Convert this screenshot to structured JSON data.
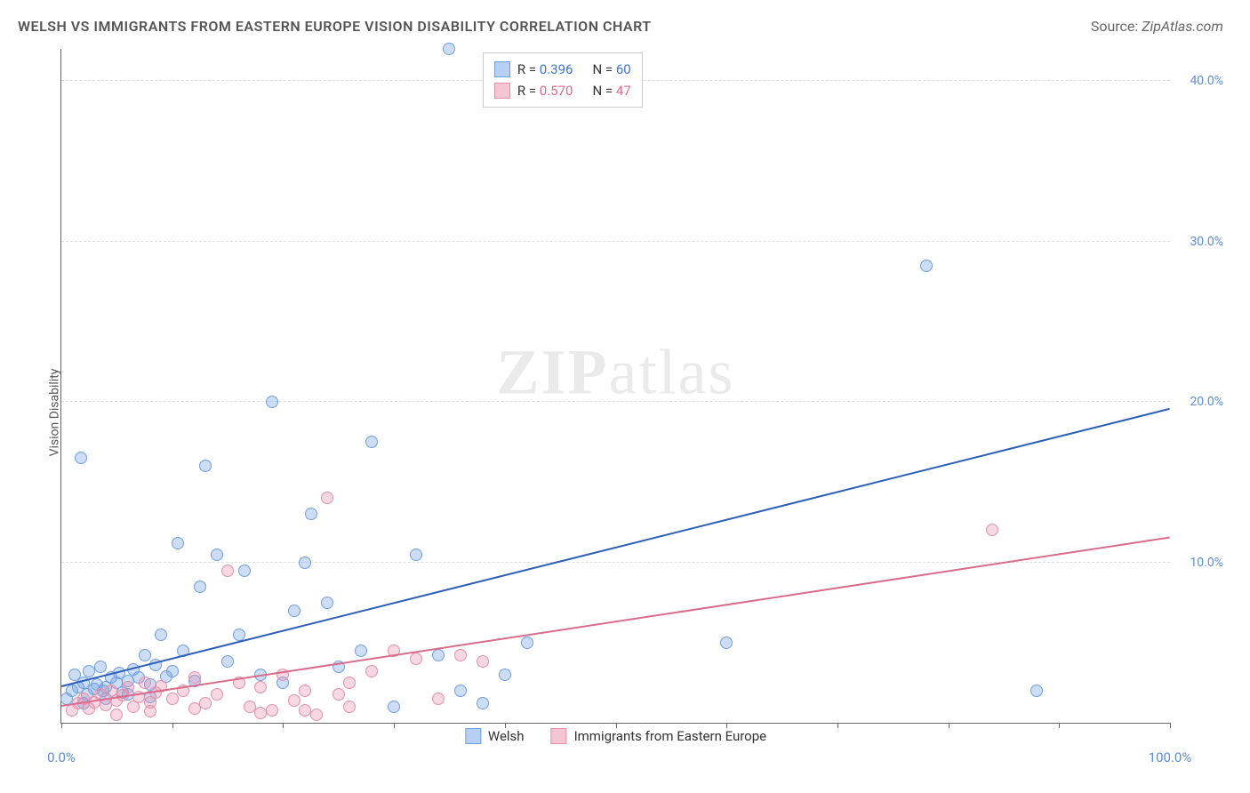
{
  "header": {
    "title": "WELSH VS IMMIGRANTS FROM EASTERN EUROPE VISION DISABILITY CORRELATION CHART",
    "title_color": "#555555",
    "title_fontsize": 16,
    "source_prefix": "Source: ",
    "source": "ZipAtlas.com",
    "source_color": "#666666",
    "source_fontsize": 14
  },
  "chart": {
    "type": "scatter",
    "background_color": "#ffffff",
    "grid_color": "#dddddd",
    "axis_color": "#666666",
    "xlim": [
      0,
      100
    ],
    "ylim": [
      0,
      42
    ],
    "xlabel": "",
    "ylabel": "Vision Disability",
    "ylabel_color": "#555555",
    "ylabel_fontsize": 14,
    "yticks": [
      10,
      20,
      30,
      40
    ],
    "ytick_labels": [
      "10.0%",
      "20.0%",
      "30.0%",
      "40.0%"
    ],
    "xticks": [
      0,
      10,
      20,
      30,
      40,
      50,
      60,
      70,
      80,
      90,
      100
    ],
    "xtick_labels_shown": {
      "0": "0.0%",
      "100": "100.0%"
    },
    "tick_label_color": "#5B8DD6",
    "tick_label_fontsize": 14,
    "point_radius": 7,
    "point_border_width": 1,
    "point_fill_opacity": 0.35,
    "regression_line_width": 2,
    "watermark": {
      "zip": "ZIP",
      "atlas": "atlas",
      "color": "#000000",
      "opacity": 0.08,
      "fontsize": 72
    }
  },
  "legend_stats": {
    "position": "top-center",
    "border_color": "#cccccc",
    "bg_color": "#ffffff",
    "r_label": "R = ",
    "n_label": "N = ",
    "label_text_color": "#333333",
    "rows": [
      {
        "swatch_fill": "#B7CFF0",
        "swatch_border": "#6F9FE0",
        "r": "0.396",
        "n": "60",
        "value_color": "#3E78D6"
      },
      {
        "swatch_fill": "#F4C6D2",
        "swatch_border": "#E590AB",
        "r": "0.570",
        "n": "47",
        "value_color": "#D96B8C"
      }
    ]
  },
  "legend_bottom": {
    "items": [
      {
        "swatch_fill": "#B7CFF0",
        "swatch_border": "#6F9FE0",
        "label": "Welsh"
      },
      {
        "swatch_fill": "#F4C6D2",
        "swatch_border": "#E590AB",
        "label": "Immigrants from Eastern Europe"
      }
    ],
    "text_color": "#333333",
    "fontsize": 15
  },
  "series": [
    {
      "name": "Welsh",
      "color_fill": "rgba(111,159,224,0.35)",
      "color_border": "#6F9FE0",
      "regression": {
        "x1": 0,
        "y1": 2.2,
        "x2": 100,
        "y2": 19.5,
        "color": "#2E5FB8"
      },
      "points": [
        [
          0.5,
          1.5
        ],
        [
          1,
          2
        ],
        [
          1.2,
          3
        ],
        [
          1.5,
          2.2
        ],
        [
          2,
          2.5
        ],
        [
          2.3,
          1.8
        ],
        [
          2.5,
          3.2
        ],
        [
          3,
          2.1
        ],
        [
          3.2,
          2.4
        ],
        [
          3.5,
          3.5
        ],
        [
          4,
          2.2
        ],
        [
          4.5,
          2.8
        ],
        [
          5,
          2.5
        ],
        [
          5.2,
          3.1
        ],
        [
          5.5,
          1.9
        ],
        [
          6,
          2.6
        ],
        [
          6.5,
          3.3
        ],
        [
          7,
          2.8
        ],
        [
          7.5,
          4.2
        ],
        [
          8,
          2.4
        ],
        [
          8.5,
          3.6
        ],
        [
          9,
          5.5
        ],
        [
          9.5,
          2.9
        ],
        [
          10,
          3.2
        ],
        [
          10.5,
          11.2
        ],
        [
          11,
          4.5
        ],
        [
          12,
          2.6
        ],
        [
          12.5,
          8.5
        ],
        [
          13,
          16.0
        ],
        [
          14,
          10.5
        ],
        [
          15,
          3.8
        ],
        [
          16,
          5.5
        ],
        [
          16.5,
          9.5
        ],
        [
          18,
          3.0
        ],
        [
          19,
          20.0
        ],
        [
          20,
          2.5
        ],
        [
          21,
          7.0
        ],
        [
          22,
          10.0
        ],
        [
          22.5,
          13.0
        ],
        [
          24,
          7.5
        ],
        [
          25,
          3.5
        ],
        [
          27,
          4.5
        ],
        [
          28,
          17.5
        ],
        [
          30,
          1.0
        ],
        [
          32,
          10.5
        ],
        [
          34,
          4.2
        ],
        [
          35,
          42.0
        ],
        [
          36,
          2.0
        ],
        [
          38,
          1.2
        ],
        [
          40,
          3.0
        ],
        [
          42,
          5.0
        ],
        [
          60,
          5.0
        ],
        [
          78,
          28.5
        ],
        [
          88,
          2.0
        ],
        [
          2,
          1.2
        ],
        [
          4,
          1.5
        ],
        [
          6,
          1.8
        ],
        [
          8,
          1.6
        ],
        [
          3.8,
          2.0
        ],
        [
          1.8,
          16.5
        ]
      ]
    },
    {
      "name": "Immigrants from Eastern Europe",
      "color_fill": "rgba(229,144,171,0.35)",
      "color_border": "#E590AB",
      "regression": {
        "x1": 0,
        "y1": 1.0,
        "x2": 100,
        "y2": 11.5,
        "color": "#D96B8C"
      },
      "points": [
        [
          1,
          0.8
        ],
        [
          1.5,
          1.2
        ],
        [
          2,
          1.5
        ],
        [
          2.5,
          0.9
        ],
        [
          3,
          1.3
        ],
        [
          3.5,
          1.8
        ],
        [
          4,
          1.1
        ],
        [
          4.5,
          2.0
        ],
        [
          5,
          1.4
        ],
        [
          5.5,
          1.7
        ],
        [
          6,
          2.2
        ],
        [
          6.5,
          1.0
        ],
        [
          7,
          1.6
        ],
        [
          7.5,
          2.5
        ],
        [
          8,
          1.3
        ],
        [
          8.5,
          1.9
        ],
        [
          9,
          2.3
        ],
        [
          10,
          1.5
        ],
        [
          11,
          2.0
        ],
        [
          12,
          2.8
        ],
        [
          13,
          1.2
        ],
        [
          14,
          1.8
        ],
        [
          15,
          9.5
        ],
        [
          16,
          2.5
        ],
        [
          17,
          1.0
        ],
        [
          18,
          2.2
        ],
        [
          19,
          0.8
        ],
        [
          20,
          3.0
        ],
        [
          21,
          1.4
        ],
        [
          22,
          2.0
        ],
        [
          23,
          0.5
        ],
        [
          24,
          14.0
        ],
        [
          25,
          1.8
        ],
        [
          26,
          2.5
        ],
        [
          28,
          3.2
        ],
        [
          30,
          4.5
        ],
        [
          32,
          4.0
        ],
        [
          34,
          1.5
        ],
        [
          36,
          4.2
        ],
        [
          38,
          3.8
        ],
        [
          5,
          0.5
        ],
        [
          8,
          0.7
        ],
        [
          12,
          0.9
        ],
        [
          18,
          0.6
        ],
        [
          22,
          0.8
        ],
        [
          26,
          1.0
        ],
        [
          84,
          12.0
        ]
      ]
    }
  ]
}
